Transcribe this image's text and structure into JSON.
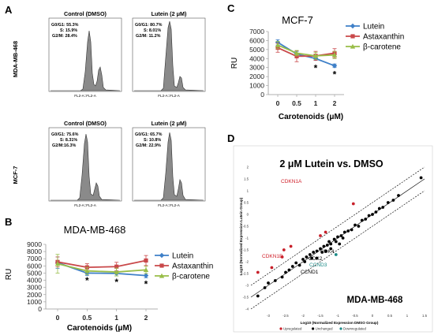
{
  "colors": {
    "lutein": "#3f80c8",
    "astaxanthin": "#c9484a",
    "bcarotene": "#98bd47",
    "histogram_fill": "#8a8a8a",
    "upregulated": "#c8202a",
    "unchanged": "#000000",
    "downregulated": "#1b8a87",
    "cdkn1a_label": "#d0202a",
    "ccnd3_label": "#1b8a87"
  },
  "panels": {
    "a": "A",
    "b": "B",
    "c": "C",
    "d": "D"
  },
  "flow": {
    "mda_label": "MDA-MB-468",
    "mcf_label": "MCF-7",
    "plots": [
      {
        "title": "Control (DMSO)",
        "g0g1": "G0/G1: 55.3%",
        "s": "S: 15.9%",
        "g2m": "G2/M: 28.4%",
        "xaxis": "FL2-A::FL2-A"
      },
      {
        "title": "Lutein (2 μM)",
        "g0g1": "G0/G1: 80.7%",
        "s": "S: 8.01%",
        "g2m": "G2/M: 11.2%",
        "xaxis": "FL2-A::FL2-A"
      },
      {
        "title": "Control (DMSO)",
        "g0g1": "G0/G1: 75.6%",
        "s": "S: 8.31%",
        "g2m": "G2/M:16.3%",
        "xaxis": "FL2-A::FL2-A"
      },
      {
        "title": "Lutein (2 μM)",
        "g0g1": "G0/G1: 65.7%",
        "s": "S: 10.8%",
        "g2m": "G2/M: 22.9%",
        "xaxis": "FL2-A::FL2-A"
      }
    ]
  },
  "chart_data": [
    {
      "type": "line",
      "panel": "B",
      "title": "MDA-MB-468",
      "xlabel": "Carotenoids (μM)",
      "ylabel": "RU",
      "categories": [
        "0",
        "0.5",
        "1",
        "2"
      ],
      "ylim": [
        0,
        9000
      ],
      "yticks": [
        "0",
        "1000",
        "2000",
        "3000",
        "4000",
        "5000",
        "6000",
        "7000",
        "8000",
        "9000"
      ],
      "series": [
        {
          "name": "Lutein",
          "values": [
            6450,
            5000,
            4950,
            4650
          ],
          "errors": [
            800,
            350,
            350,
            300
          ]
        },
        {
          "name": "Astaxanthin",
          "values": [
            6550,
            5800,
            5900,
            6750
          ],
          "errors": [
            700,
            500,
            600,
            700
          ]
        },
        {
          "name": "β-carotene",
          "values": [
            6300,
            5300,
            5150,
            5450
          ],
          "errors": [
            1300,
            500,
            550,
            500
          ]
        }
      ],
      "annotations": [
        "*",
        "*",
        "*"
      ],
      "legend_position": "right"
    },
    {
      "type": "line",
      "panel": "C",
      "title": "MCF-7",
      "xlabel": "Carotenoids (μM)",
      "ylabel": "RU",
      "categories": [
        "0",
        "0.5",
        "1",
        "2"
      ],
      "ylim": [
        0,
        7000
      ],
      "yticks": [
        "0",
        "1000",
        "2000",
        "3000",
        "4000",
        "5000",
        "6000",
        "7000"
      ],
      "series": [
        {
          "name": "Lutein",
          "values": [
            5800,
            4500,
            4000,
            3200
          ],
          "errors": [
            300,
            300,
            200,
            200
          ]
        },
        {
          "name": "Astaxanthin",
          "values": [
            5200,
            4250,
            4300,
            4600
          ],
          "errors": [
            500,
            600,
            500,
            500
          ]
        },
        {
          "name": "β-carotene",
          "values": [
            5500,
            4600,
            4300,
            4400
          ],
          "errors": [
            400,
            300,
            400,
            400
          ]
        }
      ],
      "annotations": [
        "*",
        "*"
      ],
      "legend_position": "right"
    },
    {
      "type": "scatter",
      "panel": "D",
      "title": "2 μM Lutein vs. DMSO",
      "subtitle": "MDA-MB-468",
      "xlabel": "Log10 (Normalized Expression DMSO Group)",
      "ylabel": "Log10 (Normalized Expression Lutein Group)",
      "xlim": [
        -3.5,
        1.5
      ],
      "ylim": [
        -4,
        2
      ],
      "xticks": [
        "-3",
        "-2.5",
        "-2",
        "-1.5",
        "-1",
        "-0.5",
        "0",
        "0.5",
        "1",
        "1.5"
      ],
      "yticks": [
        "-4",
        "-3.5",
        "-3",
        "-2.5",
        "-2",
        "-1.5",
        "-1",
        "-0.5",
        "0",
        "0.5",
        "1",
        "1.5",
        "2"
      ],
      "series": [
        {
          "name": "Upregulated",
          "points": [
            [
              -0.55,
              0.45
            ],
            [
              -2.55,
              -1.5
            ],
            [
              -2.35,
              -1.35
            ],
            [
              -3.3,
              -2.45
            ],
            [
              -2.9,
              -2.25
            ],
            [
              -2.6,
              -1.8
            ],
            [
              -1.5,
              -0.9
            ],
            [
              -1.35,
              -0.75
            ]
          ]
        },
        {
          "name": "Unchanged",
          "points": [
            [
              -3.3,
              -3.45
            ],
            [
              -3.1,
              -3.1
            ],
            [
              -3.0,
              -2.9
            ],
            [
              -2.8,
              -2.8
            ],
            [
              -2.6,
              -2.65
            ],
            [
              -2.5,
              -2.45
            ],
            [
              -2.4,
              -2.35
            ],
            [
              -2.3,
              -2.2
            ],
            [
              -2.2,
              -2.05
            ],
            [
              -2.1,
              -2.15
            ],
            [
              -2.0,
              -1.9
            ],
            [
              -1.95,
              -2.0
            ],
            [
              -1.9,
              -1.8
            ],
            [
              -1.8,
              -1.7
            ],
            [
              -1.75,
              -1.85
            ],
            [
              -1.7,
              -1.6
            ],
            [
              -1.6,
              -1.55
            ],
            [
              -1.5,
              -1.45
            ],
            [
              -1.45,
              -1.6
            ],
            [
              -1.4,
              -1.35
            ],
            [
              -1.3,
              -1.3
            ],
            [
              -1.25,
              -1.15
            ],
            [
              -1.2,
              -1.25
            ],
            [
              -1.1,
              -1.05
            ],
            [
              -1.05,
              -1.15
            ],
            [
              -1.0,
              -0.95
            ],
            [
              -0.9,
              -0.9
            ],
            [
              -0.85,
              -1.0
            ],
            [
              -0.8,
              -0.75
            ],
            [
              -0.7,
              -0.7
            ],
            [
              -0.6,
              -0.65
            ],
            [
              -0.5,
              -0.45
            ],
            [
              -0.4,
              -0.5
            ],
            [
              -0.3,
              -0.25
            ],
            [
              -0.2,
              -0.2
            ],
            [
              -0.1,
              -0.05
            ],
            [
              0.0,
              0.0
            ],
            [
              0.1,
              0.1
            ],
            [
              0.2,
              0.25
            ],
            [
              0.3,
              0.3
            ],
            [
              0.45,
              0.5
            ],
            [
              0.6,
              0.6
            ],
            [
              0.75,
              0.8
            ],
            [
              1.4,
              1.55
            ],
            [
              -1.6,
              -1.85
            ],
            [
              -1.35,
              -1.55
            ],
            [
              -1.2,
              -1.45
            ],
            [
              -0.95,
              -1.25
            ]
          ]
        },
        {
          "name": "Downregulated",
          "points": [
            [
              -1.05,
              -1.7
            ]
          ]
        }
      ],
      "gene_labels": [
        "CDKN1A",
        "CDKN1B",
        "CDK4",
        "CDK2",
        "CCND3",
        "CCND1"
      ],
      "legend": [
        "Upregulated",
        "Unchanged",
        "Downregulated"
      ]
    }
  ]
}
